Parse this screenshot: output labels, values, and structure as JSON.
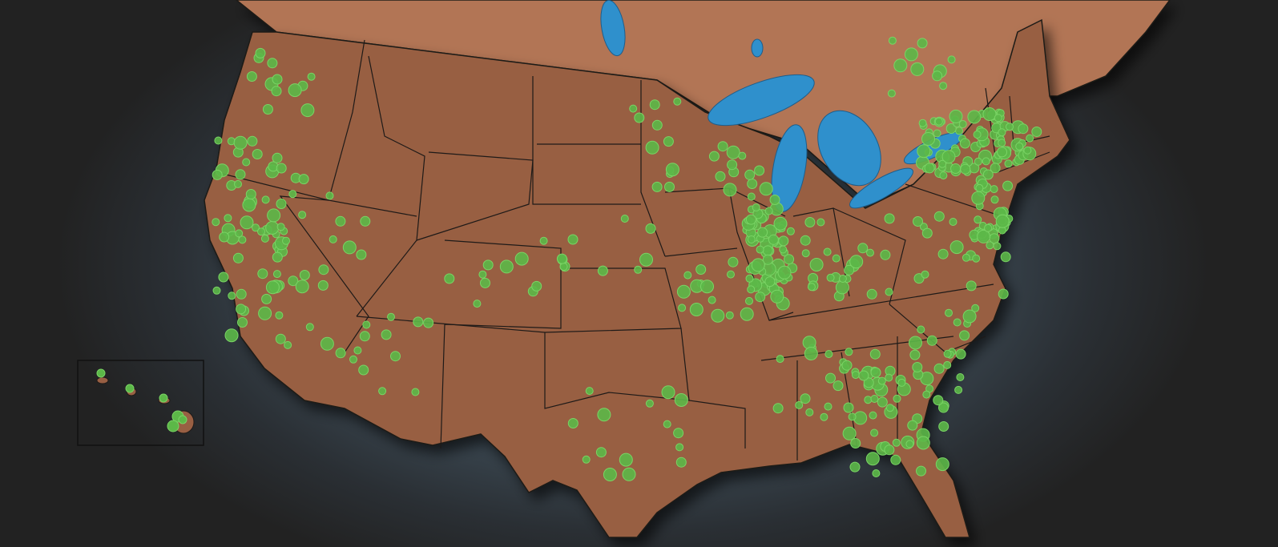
{
  "map": {
    "colors": {
      "us_fill": "#985f43",
      "canada_fill": "#b27454",
      "water": "#2f90cc",
      "border": "#1e1a18",
      "marker_fill": "#5cb848",
      "marker_stroke": "#7ad465",
      "background": "#222222"
    },
    "insets": [
      "hawaii"
    ],
    "marker_type": "proportional-circle"
  }
}
